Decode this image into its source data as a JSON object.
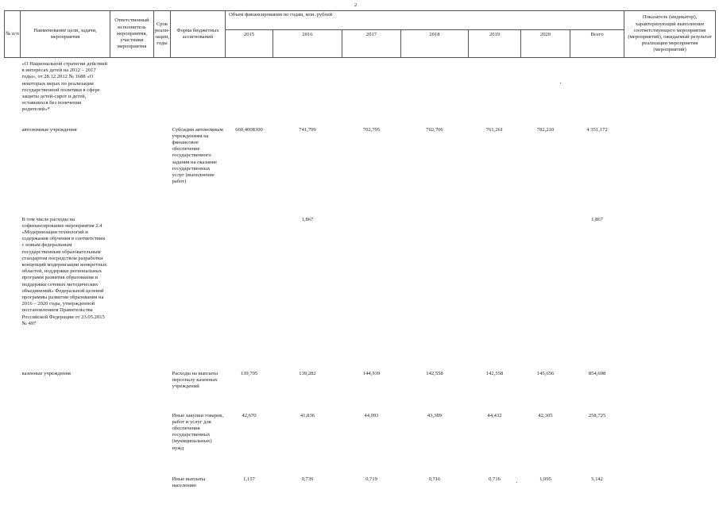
{
  "page_number": "2",
  "header": {
    "num": "№ п/п",
    "name": "Наименование цели, задачи, мероприятия",
    "responsible": "Ответственный исполнитель мероприятия, участники мероприятия",
    "term": "Срок реали-зации, годы",
    "form": "Форма бюджетных ассигнований",
    "financing": "Объем финансирования по годам, млн. рублей",
    "years": [
      "2015",
      "2016",
      "2017",
      "2018",
      "2019",
      "2020",
      "Всего"
    ],
    "indicator": "Показатель (индикатор), характеризующий выполнение соответствующего мероприятия (мероприятий), ожидаемый результат реализации мероприятия (мероприятий)"
  },
  "rows": [
    {
      "name": "«О Национальной стратегии действий в интересах детей на 2012 – 2017 годы», от 28.12.2012 № 1688 «О некоторых мерах по реализации государственной политики в сфере защиты детей-сирот и детей, оставшихся без попечения родителей»*",
      "form": "",
      "values": [
        "",
        "",
        "",
        "",
        "",
        "",
        ""
      ]
    },
    {
      "name": "автономные учреждения",
      "form": "Субсидии автономным учреждениям на финансовое обеспечение государственного задания на оказание государственных услуг (выполнение работ)",
      "values": [
        "660,4008300",
        "741,799",
        "702,795",
        "702,706",
        "761,261",
        "782,210",
        "4 351,172"
      ]
    },
    {
      "name": "В том числе расходы на софинансирование мероприятия 2.4 «Модернизация технологий и содержания обучения в соответствии с новым федеральным государственным образовательным стандартом посредством разработки концепций модернизации конкретных областей, поддержки региональных программ развития образования и поддержки сетевых методических объединений» Федеральной целевой программы развития образования на 2016 – 2020 годы, утвержденной постановлением Правительства Российской Федерации от 23.05.2015 № 497",
      "form": "",
      "values": [
        "",
        "1,867",
        "",
        "",
        "",
        "",
        "1,867"
      ]
    },
    {
      "name": "казенные учреждения",
      "form": "Расходы на выплаты персоналу казенных учреждений",
      "values": [
        "139,705",
        "139,282",
        "144,939",
        "142,558",
        "142,558",
        "145,656",
        "854,698"
      ]
    },
    {
      "name": "",
      "form": "Иные закупки товаров, работ и услуг для обеспечения государственных (муниципальных) нужд",
      "values": [
        "42,670",
        "41,836",
        "44,093",
        "43,389",
        "44,432",
        "42,305",
        "258,725"
      ]
    },
    {
      "name": "",
      "form": "Иные выплаты населению",
      "values": [
        "1,157",
        "0,739",
        "0,719",
        "0,716",
        "0,716",
        "1,095",
        "5,142"
      ]
    }
  ]
}
